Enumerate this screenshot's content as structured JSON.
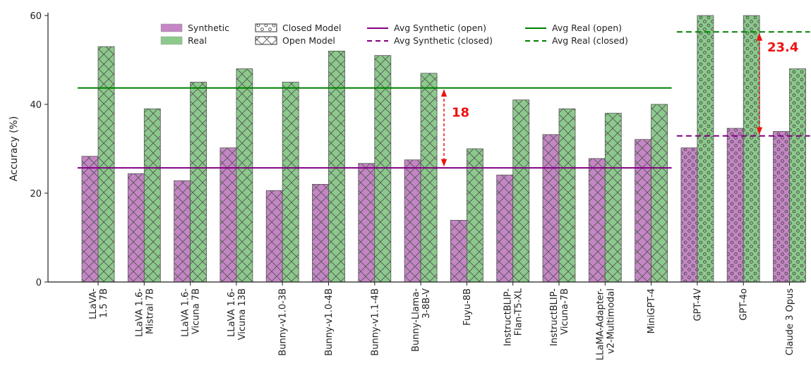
{
  "chart_data": {
    "type": "bar",
    "ylabel": "Accuracy (%)",
    "ylim": [
      0,
      60
    ],
    "yticks": [
      0,
      20,
      40,
      60
    ],
    "grid": false,
    "legend_position": "top",
    "categories": [
      "LLaVA-\n1.5 7B",
      "LLaVA 1.6-\nMistral 7B",
      "LLaVA 1.6-\nVicuna 7B",
      "LLaVA 1.6-\nVicuna 13B",
      "Bunny-v1.0-3B",
      "Bunny-v1.0-4B",
      "Bunny-v1.1-4B",
      "Bunny-Llama-\n3-8B-V",
      "Fuyu-8B",
      "InstructBLIP-\nFlan-T5-XL",
      "InstructBLIP-\nVicuna-7B",
      "LLaMA-Adapter-\nv2-Multimodal",
      "MiniGPT-4",
      "GPT-4V",
      "GPT-4o",
      "Claude 3 Opus"
    ],
    "model_type": [
      "open",
      "open",
      "open",
      "open",
      "open",
      "open",
      "open",
      "open",
      "open",
      "open",
      "open",
      "open",
      "open",
      "closed",
      "closed",
      "closed"
    ],
    "series": [
      {
        "name": "Synthetic",
        "color": "#c486c4",
        "values": [
          28.3,
          24.4,
          22.8,
          30.2,
          20.6,
          22.0,
          26.7,
          27.5,
          13.9,
          24.1,
          33.2,
          27.8,
          32.1,
          30.2,
          34.6,
          33.9
        ]
      },
      {
        "name": "Real",
        "color": "#8cc98c",
        "values": [
          53,
          39,
          45,
          48,
          45,
          52,
          51,
          47,
          30,
          41,
          39,
          38,
          40,
          60,
          60,
          48
        ]
      }
    ],
    "hatches": {
      "open": "cross",
      "closed": "circles"
    },
    "reference_lines": [
      {
        "name": "Avg Synthetic (open)",
        "value": 25.7,
        "color": "#800080",
        "style": "solid",
        "span": "open"
      },
      {
        "name": "Avg Synthetic (closed)",
        "value": 32.9,
        "color": "#800080",
        "style": "dashed",
        "span": "closed"
      },
      {
        "name": "Avg Real (open)",
        "value": 43.7,
        "color": "#008000",
        "style": "solid",
        "span": "open"
      },
      {
        "name": "Avg Real (closed)",
        "value": 56.3,
        "color": "#008000",
        "style": "dashed",
        "span": "closed"
      }
    ],
    "legend_hatch_entries": [
      "Closed Model",
      "Open Model"
    ],
    "annotations": [
      {
        "text": "18",
        "from": 25.7,
        "to": 43.7,
        "group": "open",
        "color": "#ee1111"
      },
      {
        "text": "23.4",
        "from": 32.9,
        "to": 56.3,
        "group": "closed",
        "color": "#ee1111"
      }
    ]
  }
}
